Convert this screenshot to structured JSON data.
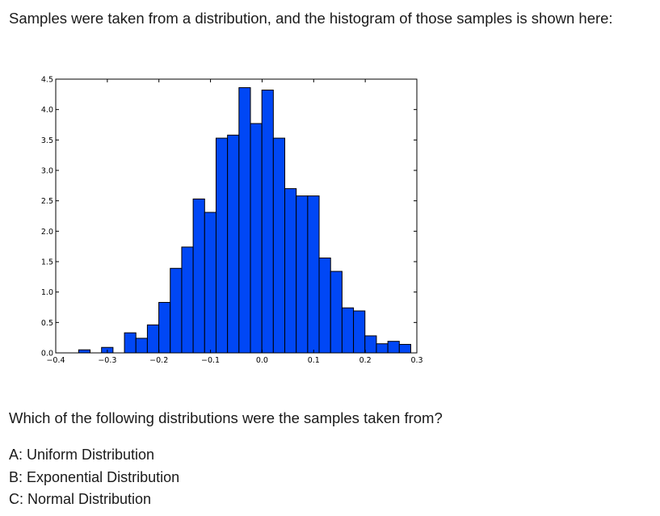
{
  "question": {
    "intro": "Samples were taken from a distribution, and the histogram of those samples is shown here:",
    "prompt": "Which of the following distributions were the samples taken from?",
    "options": [
      "A: Uniform Distribution",
      "B: Exponential Distribution",
      "C: Normal Distribution"
    ]
  },
  "colors": {
    "bar_fill": "#0047f5",
    "bar_stroke": "#000000",
    "axis": "#000000"
  },
  "chart_data": {
    "type": "bar",
    "title": "",
    "xlabel": "",
    "ylabel": "",
    "xlim": [
      -0.4,
      0.3
    ],
    "ylim": [
      0,
      4.5
    ],
    "grid": false,
    "x_ticks": [
      -0.4,
      -0.3,
      -0.2,
      -0.1,
      0.0,
      0.1,
      0.2,
      0.3
    ],
    "x_tick_labels": [
      "−0.4",
      "−0.3",
      "−0.2",
      "−0.1",
      "0.0",
      "0.1",
      "0.2",
      "0.3"
    ],
    "y_ticks": [
      0,
      0.5,
      1.0,
      1.5,
      2.0,
      2.5,
      3.0,
      3.5,
      4.0,
      4.5
    ],
    "y_tick_labels": [
      "0.0",
      "0.5",
      "1.0",
      "1.5",
      "2.0",
      "2.5",
      "3.0",
      "3.5",
      "4.0",
      "4.5"
    ],
    "bin_start": -0.4,
    "bin_width": 0.0222,
    "values": [
      0,
      0,
      0.05,
      0,
      0.09,
      0,
      0.33,
      0.24,
      0.46,
      0.83,
      1.39,
      1.74,
      2.53,
      2.31,
      3.53,
      3.58,
      4.36,
      3.77,
      4.32,
      3.53,
      2.7,
      2.58,
      2.58,
      1.56,
      1.34,
      0.74,
      0.69,
      0.28,
      0.15,
      0.19,
      0.14
    ]
  }
}
